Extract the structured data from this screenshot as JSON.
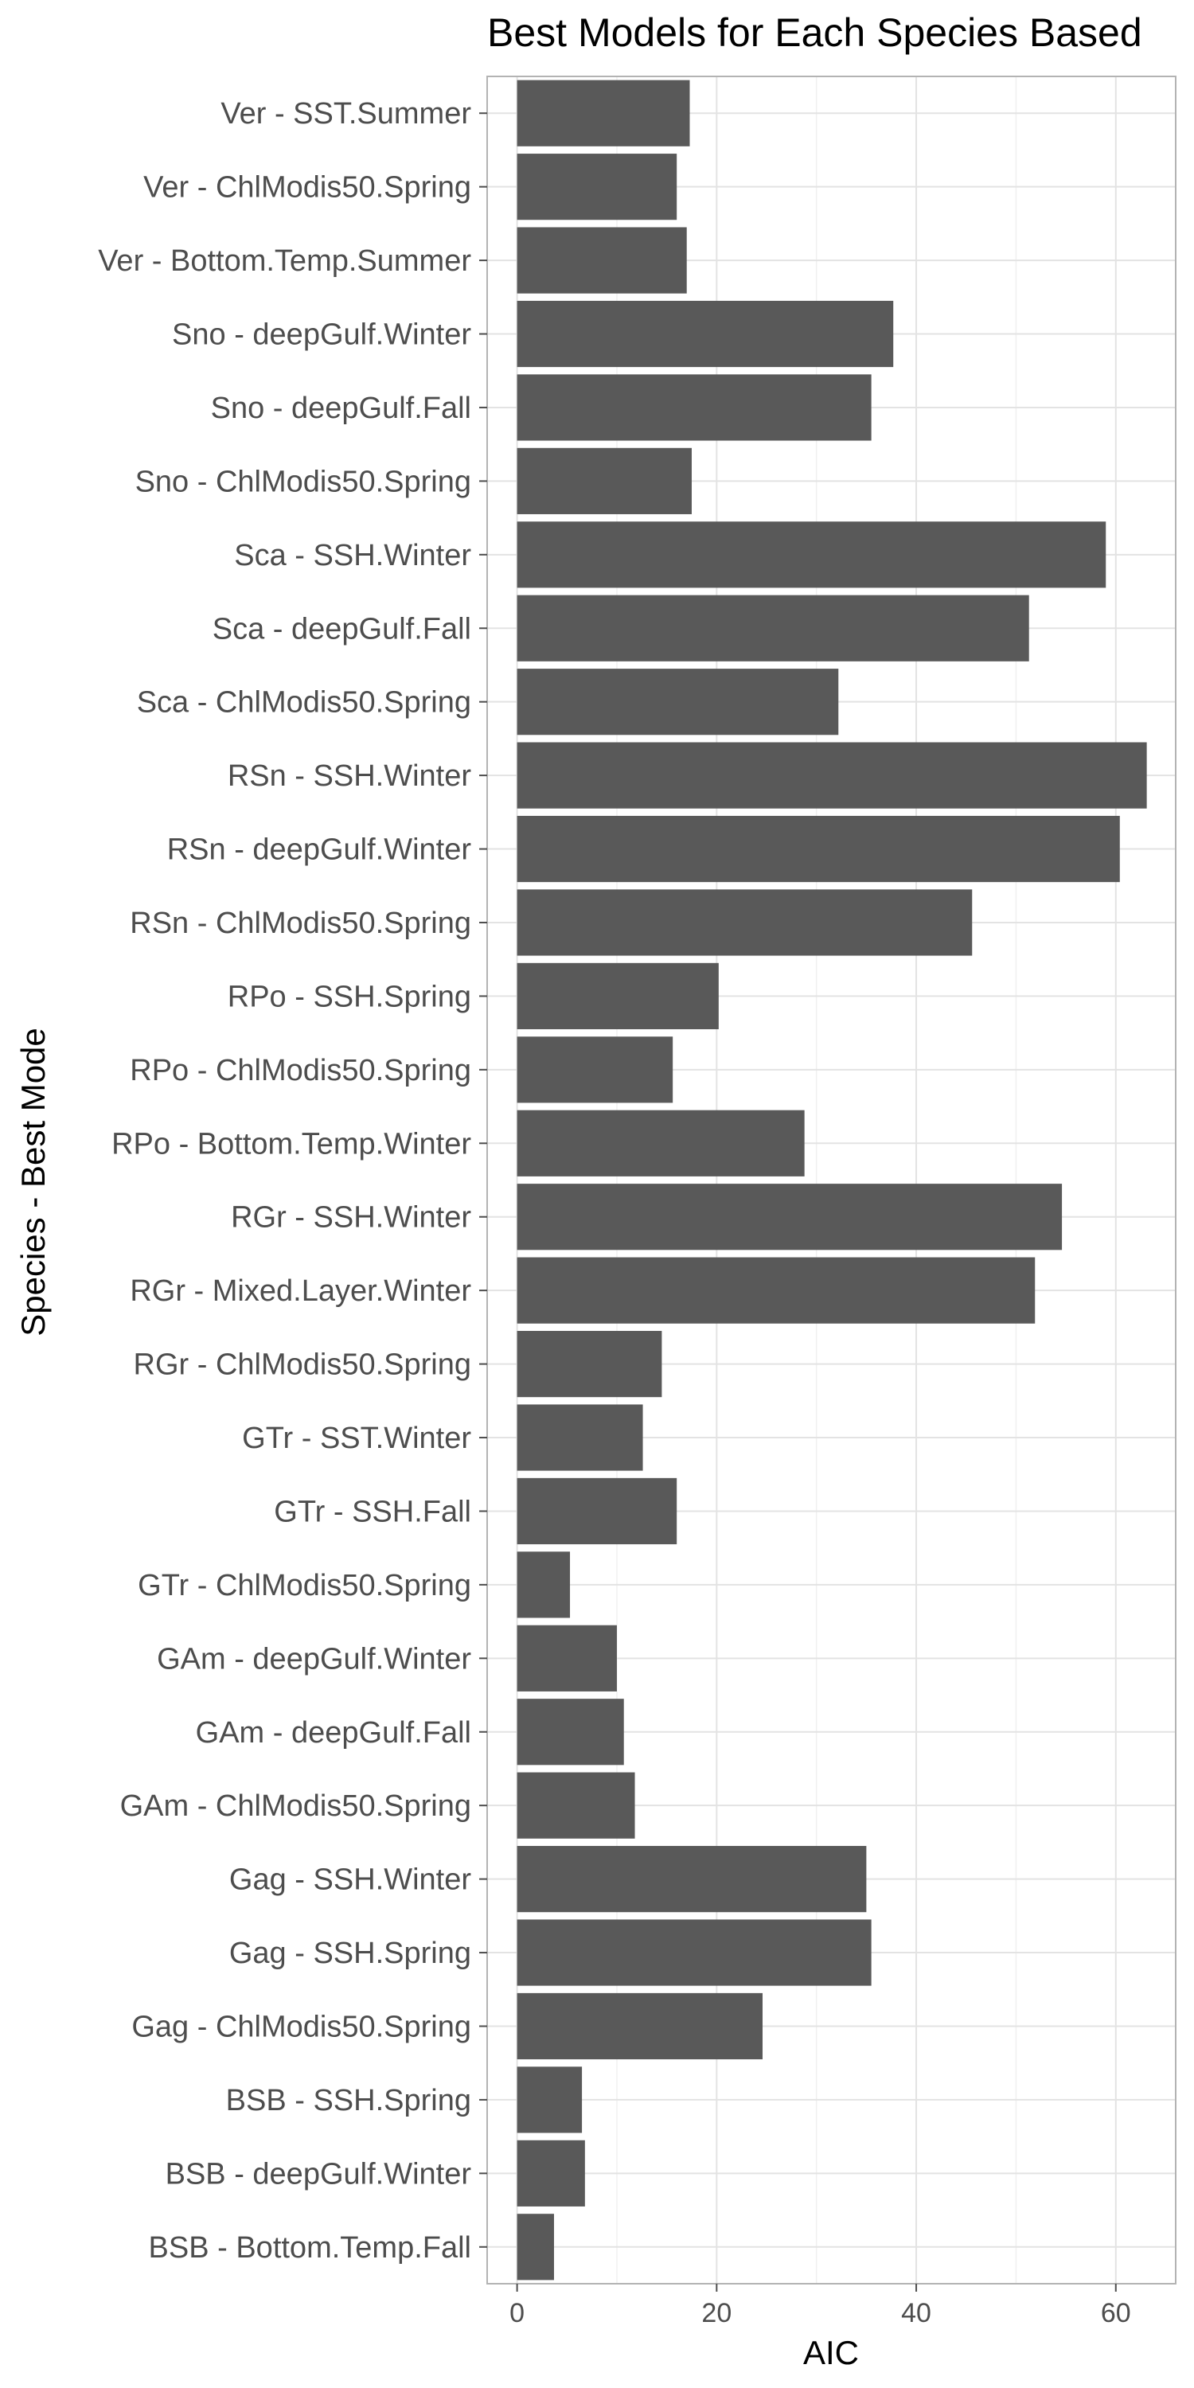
{
  "chart_data": {
    "type": "bar",
    "orientation": "horizontal",
    "title": "Best Models for Each Species Based",
    "xlabel": "AIC",
    "ylabel": "Species - Best Mode",
    "xlim": [
      -3,
      66
    ],
    "xticks": [
      0,
      20,
      40,
      60
    ],
    "grid": true,
    "legend": "none",
    "bar_color": "#595959",
    "categories": [
      "Ver - SST.Summer",
      "Ver - ChlModis50.Spring",
      "Ver - Bottom.Temp.Summer",
      "Sno - deepGulf.Winter",
      "Sno - deepGulf.Fall",
      "Sno - ChlModis50.Spring",
      "Sca - SSH.Winter",
      "Sca - deepGulf.Fall",
      "Sca - ChlModis50.Spring",
      "RSn - SSH.Winter",
      "RSn - deepGulf.Winter",
      "RSn - ChlModis50.Spring",
      "RPo - SSH.Spring",
      "RPo - ChlModis50.Spring",
      "RPo - Bottom.Temp.Winter",
      "RGr - SSH.Winter",
      "RGr - Mixed.Layer.Winter",
      "RGr - ChlModis50.Spring",
      "GTr - SST.Winter",
      "GTr - SSH.Fall",
      "GTr - ChlModis50.Spring",
      "GAm - deepGulf.Winter",
      "GAm - deepGulf.Fall",
      "GAm - ChlModis50.Spring",
      "Gag - SSH.Winter",
      "Gag - SSH.Spring",
      "Gag - ChlModis50.Spring",
      "BSB - SSH.Spring",
      "BSB - deepGulf.Winter",
      "BSB - Bottom.Temp.Fall"
    ],
    "values": [
      17.3,
      16.0,
      17.0,
      37.7,
      35.5,
      17.5,
      59.0,
      51.3,
      32.2,
      63.1,
      60.4,
      45.6,
      20.2,
      15.6,
      28.8,
      54.6,
      51.9,
      14.5,
      12.6,
      16.0,
      5.3,
      10.0,
      10.7,
      11.8,
      35.0,
      35.5,
      24.6,
      6.5,
      6.8,
      3.7
    ]
  }
}
